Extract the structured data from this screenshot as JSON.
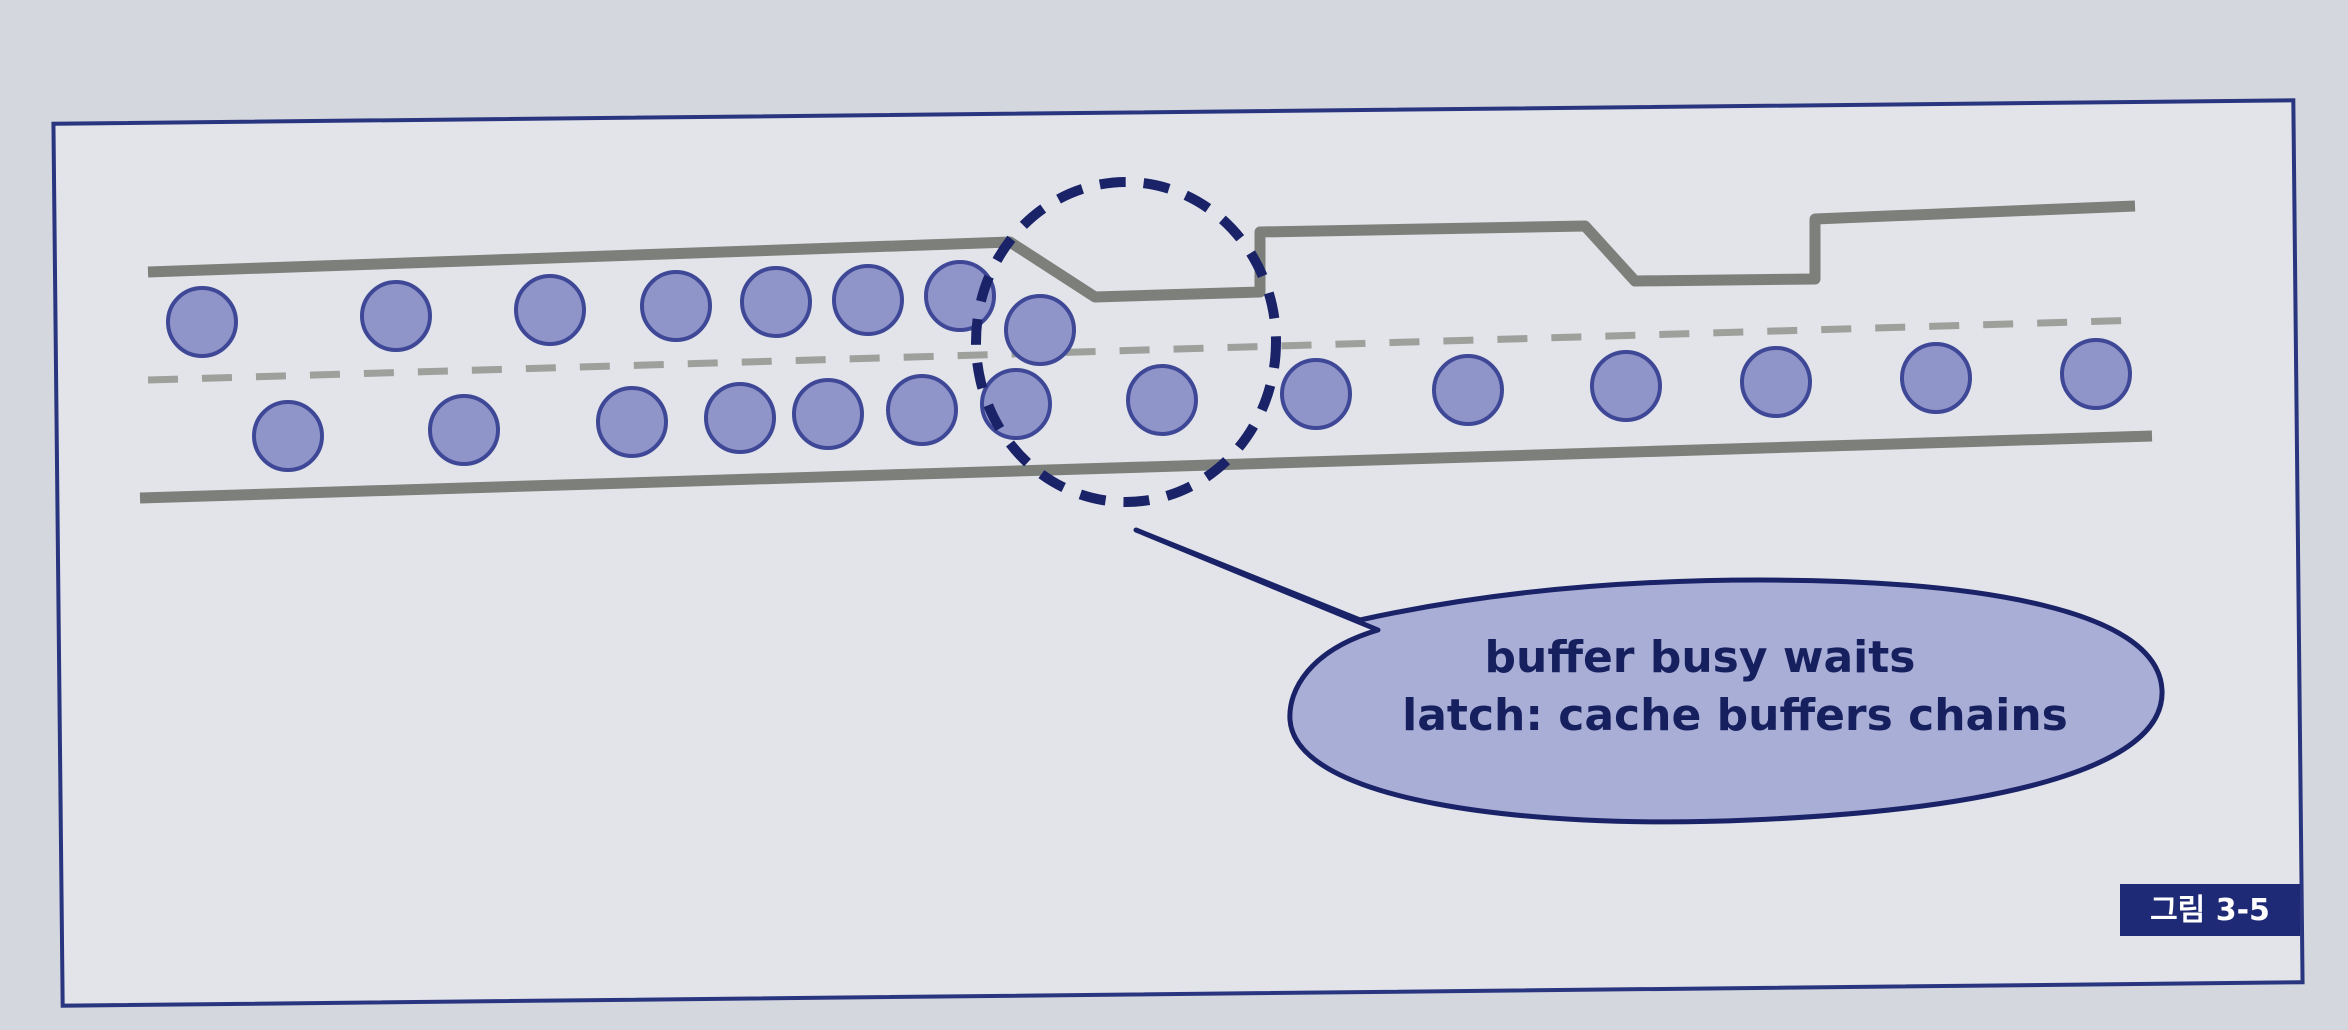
{
  "callout": {
    "line1": "buffer busy waits",
    "line2": "latch: cache buffers chains"
  },
  "figure_label": "그림 3-5",
  "colors": {
    "page": "#dfe1e6",
    "frame": "#2a3580",
    "track_line": "#7c7f7a",
    "dashed_line": "#9da09b",
    "circle_fill": "#8f94c9",
    "circle_stroke": "#3f4897",
    "dashed_circle": "#1b2368",
    "callout_fill": "#a9aed6",
    "callout_stroke": "#1b2368",
    "badge_fill": "#1e2a76"
  }
}
